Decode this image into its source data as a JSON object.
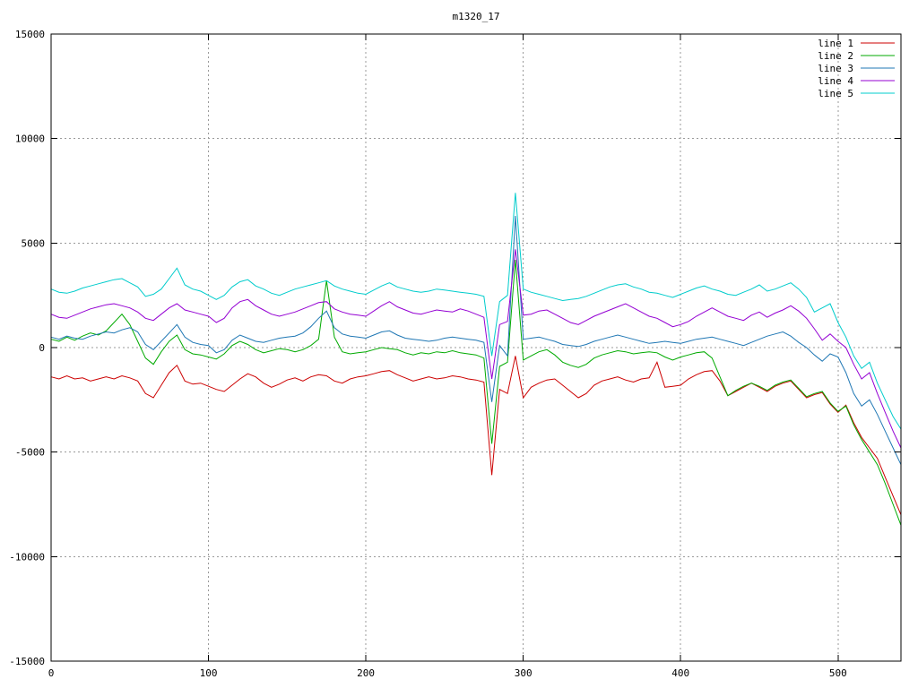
{
  "chart_data": {
    "type": "line",
    "title": "m1320_17",
    "xlabel": "",
    "ylabel": "",
    "xlim": [
      0,
      540
    ],
    "ylim": [
      -15000,
      15000
    ],
    "xticks": [
      0,
      100,
      200,
      300,
      400,
      500
    ],
    "yticks": [
      -15000,
      -10000,
      -5000,
      0,
      5000,
      10000,
      15000
    ],
    "grid": true,
    "legend_position": "top-right",
    "colors": {
      "background": "#ffffff",
      "border": "#000000",
      "grid": "#9a9a9a"
    },
    "x_start": 0,
    "x_step": 5,
    "series": [
      {
        "name": "line 1",
        "color": "#cc0000",
        "values": [
          -1400,
          -1500,
          -1350,
          -1500,
          -1450,
          -1600,
          -1500,
          -1400,
          -1500,
          -1350,
          -1450,
          -1600,
          -2200,
          -2400,
          -1800,
          -1200,
          -850,
          -1600,
          -1750,
          -1700,
          -1850,
          -2000,
          -2100,
          -1800,
          -1500,
          -1250,
          -1400,
          -1700,
          -1900,
          -1750,
          -1550,
          -1450,
          -1600,
          -1400,
          -1300,
          -1350,
          -1600,
          -1700,
          -1500,
          -1400,
          -1350,
          -1250,
          -1150,
          -1100,
          -1300,
          -1450,
          -1600,
          -1500,
          -1400,
          -1500,
          -1450,
          -1350,
          -1400,
          -1500,
          -1550,
          -1650,
          -6100,
          -2000,
          -2200,
          -400,
          -2400,
          -1900,
          -1700,
          -1550,
          -1500,
          -1800,
          -2100,
          -2400,
          -2200,
          -1800,
          -1600,
          -1500,
          -1400,
          -1550,
          -1650,
          -1500,
          -1450,
          -700,
          -1900,
          -1850,
          -1800,
          -1500,
          -1300,
          -1150,
          -1100,
          -1600,
          -2300,
          -2100,
          -1900,
          -1700,
          -1900,
          -2100,
          -1850,
          -1700,
          -1600,
          -2000,
          -2400,
          -2250,
          -2150,
          -2700,
          -3100,
          -2750,
          -3600,
          -4300,
          -4800,
          -5300,
          -6200,
          -7100,
          -8000
        ]
      },
      {
        "name": "line 2",
        "color": "#00aa00",
        "values": [
          400,
          300,
          500,
          350,
          550,
          700,
          600,
          800,
          1200,
          1600,
          1100,
          300,
          -500,
          -800,
          -200,
          300,
          600,
          -100,
          -300,
          -350,
          -450,
          -550,
          -300,
          100,
          300,
          150,
          -100,
          -250,
          -150,
          -50,
          -100,
          -200,
          -100,
          100,
          400,
          3200,
          500,
          -200,
          -300,
          -250,
          -200,
          -100,
          0,
          -50,
          -100,
          -250,
          -350,
          -250,
          -300,
          -200,
          -250,
          -150,
          -250,
          -300,
          -350,
          -500,
          -4600,
          -900,
          -700,
          4200,
          -600,
          -400,
          -200,
          -100,
          -350,
          -700,
          -850,
          -950,
          -800,
          -500,
          -350,
          -250,
          -150,
          -200,
          -300,
          -250,
          -200,
          -250,
          -450,
          -600,
          -450,
          -350,
          -250,
          -200,
          -500,
          -1400,
          -2300,
          -2050,
          -1850,
          -1700,
          -1850,
          -2050,
          -1800,
          -1650,
          -1550,
          -1950,
          -2350,
          -2200,
          -2100,
          -2650,
          -3050,
          -2800,
          -3700,
          -4400,
          -5000,
          -5600,
          -6500,
          -7500,
          -8500
        ]
      },
      {
        "name": "line 3",
        "color": "#1f77b4",
        "values": [
          500,
          400,
          550,
          450,
          400,
          550,
          650,
          750,
          700,
          850,
          950,
          750,
          150,
          -100,
          300,
          700,
          1100,
          500,
          250,
          150,
          100,
          -250,
          -100,
          350,
          600,
          450,
          300,
          250,
          350,
          450,
          500,
          550,
          700,
          1000,
          1400,
          1750,
          950,
          650,
          550,
          500,
          450,
          600,
          750,
          800,
          600,
          450,
          400,
          350,
          300,
          350,
          450,
          500,
          450,
          400,
          350,
          250,
          -2600,
          100,
          -400,
          6300,
          400,
          450,
          500,
          400,
          300,
          150,
          100,
          50,
          150,
          300,
          400,
          500,
          600,
          500,
          400,
          300,
          200,
          250,
          300,
          250,
          200,
          300,
          400,
          450,
          500,
          400,
          300,
          200,
          100,
          250,
          400,
          550,
          650,
          750,
          550,
          250,
          0,
          -350,
          -650,
          -300,
          -450,
          -1200,
          -2200,
          -2800,
          -2500,
          -3200,
          -4000,
          -4800,
          -5600
        ]
      },
      {
        "name": "line 4",
        "color": "#9400d3",
        "values": [
          1600,
          1450,
          1400,
          1550,
          1700,
          1850,
          1950,
          2050,
          2100,
          2000,
          1900,
          1700,
          1400,
          1300,
          1600,
          1900,
          2100,
          1800,
          1700,
          1600,
          1500,
          1200,
          1400,
          1900,
          2200,
          2300,
          2000,
          1800,
          1600,
          1500,
          1600,
          1700,
          1850,
          2000,
          2150,
          2200,
          1850,
          1700,
          1600,
          1550,
          1500,
          1750,
          2000,
          2200,
          1950,
          1800,
          1650,
          1600,
          1700,
          1800,
          1750,
          1700,
          1850,
          1750,
          1600,
          1450,
          -1500,
          1100,
          1250,
          4700,
          1550,
          1600,
          1750,
          1800,
          1600,
          1400,
          1200,
          1100,
          1300,
          1500,
          1650,
          1800,
          1950,
          2100,
          1900,
          1700,
          1500,
          1400,
          1200,
          1000,
          1100,
          1250,
          1500,
          1700,
          1900,
          1700,
          1500,
          1400,
          1300,
          1550,
          1700,
          1450,
          1650,
          1800,
          2000,
          1750,
          1400,
          900,
          350,
          650,
          300,
          0,
          -800,
          -1500,
          -1200,
          -2200,
          -3100,
          -4000,
          -4800
        ]
      },
      {
        "name": "line 5",
        "color": "#00cccc",
        "values": [
          2800,
          2650,
          2600,
          2700,
          2850,
          2950,
          3050,
          3150,
          3250,
          3300,
          3100,
          2900,
          2450,
          2550,
          2800,
          3300,
          3800,
          3000,
          2800,
          2700,
          2500,
          2300,
          2500,
          2900,
          3150,
          3250,
          2950,
          2800,
          2600,
          2500,
          2650,
          2800,
          2900,
          3000,
          3100,
          3200,
          2950,
          2800,
          2700,
          2600,
          2550,
          2750,
          2950,
          3100,
          2900,
          2800,
          2700,
          2650,
          2700,
          2800,
          2750,
          2700,
          2650,
          2600,
          2550,
          2450,
          -400,
          2200,
          2500,
          7400,
          2800,
          2650,
          2550,
          2450,
          2350,
          2250,
          2300,
          2350,
          2450,
          2600,
          2750,
          2900,
          3000,
          3050,
          2900,
          2800,
          2650,
          2600,
          2500,
          2400,
          2550,
          2700,
          2850,
          2950,
          2800,
          2700,
          2550,
          2500,
          2650,
          2800,
          3000,
          2700,
          2800,
          2950,
          3100,
          2800,
          2400,
          1700,
          1900,
          2100,
          1200,
          500,
          -400,
          -1000,
          -700,
          -1700,
          -2500,
          -3300,
          -3900
        ]
      }
    ]
  }
}
